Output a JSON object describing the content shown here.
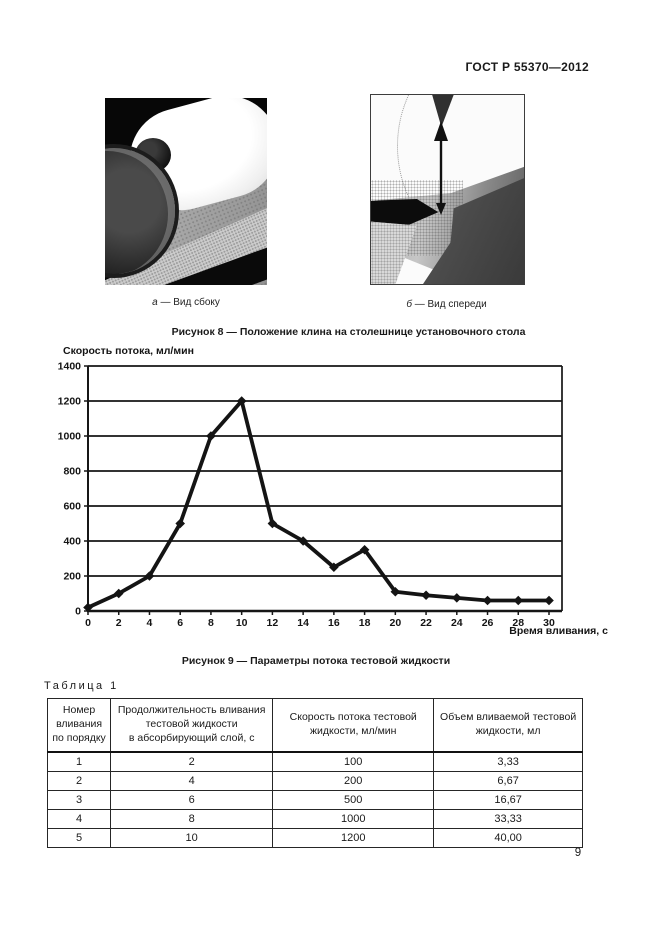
{
  "document": {
    "standard_number": "ГОСТ Р 55370—2012",
    "page_number": "9"
  },
  "figure8": {
    "caption": "Рисунок  8 — Положение клина на столешнице установочного стола",
    "photo_a": {
      "letter": "а",
      "label": "—  Вид сбоку"
    },
    "photo_b": {
      "letter": "б",
      "label": "—  Вид спереди"
    }
  },
  "figure9": {
    "caption": "Рисунок  9 — Параметры потока тестовой жидкости"
  },
  "chart_data": {
    "type": "line",
    "title": "",
    "ylabel": "Скорость потока, мл/мин",
    "xlabel": "Время вливания, с",
    "x": [
      0,
      2,
      4,
      6,
      8,
      10,
      12,
      14,
      16,
      18,
      20,
      22,
      24,
      26,
      28,
      30
    ],
    "y": [
      20,
      100,
      200,
      500,
      1000,
      1200,
      500,
      400,
      250,
      350,
      110,
      90,
      75,
      60,
      60,
      60
    ],
    "xticks": [
      0,
      2,
      4,
      6,
      8,
      10,
      12,
      14,
      16,
      18,
      20,
      22,
      24,
      26,
      28,
      30
    ],
    "yticks": [
      0,
      200,
      400,
      600,
      800,
      1000,
      1200,
      1400
    ],
    "xlim": [
      0,
      30
    ],
    "ylim": [
      0,
      1400
    ],
    "grid": "horizontal",
    "legend": "none",
    "marker": "diamond",
    "line_color": "#141414"
  },
  "table": {
    "label": "Таблица 1",
    "columns": [
      "Номер\nвливания\nпо порядку",
      "Продолжительность вливания\nтестовой жидкости\nв абсорбирующий слой, с",
      "Скорость потока тестовой\nжидкости, мл/мин",
      "Объем вливаемой тестовой\nжидкости, мл"
    ],
    "rows": [
      [
        "1",
        "2",
        "100",
        "3,33"
      ],
      [
        "2",
        "4",
        "200",
        "6,67"
      ],
      [
        "3",
        "6",
        "500",
        "16,67"
      ],
      [
        "4",
        "8",
        "1000",
        "33,33"
      ],
      [
        "5",
        "10",
        "1200",
        "40,00"
      ]
    ]
  }
}
